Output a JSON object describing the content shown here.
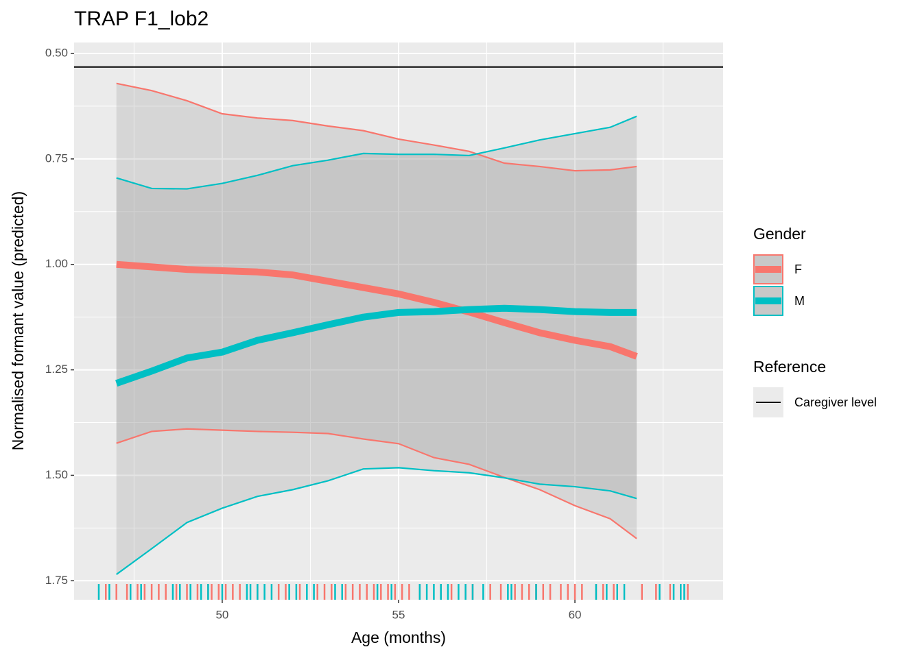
{
  "chart_data": {
    "type": "line",
    "title": "TRAP F1_lob2",
    "x_label": "Age (months)",
    "y_label": "Normalised formant value (predicted)",
    "legend_title": "Gender",
    "reference_legend_title": "Reference",
    "reference": {
      "name": "Caregiver level",
      "value": 0.532,
      "color": "#000000"
    },
    "x": [
      47,
      48,
      49,
      50,
      51,
      52,
      53,
      54,
      55,
      56,
      57,
      58,
      59,
      60,
      61,
      61.75
    ],
    "series": [
      {
        "name": "F",
        "color": "#F8766D",
        "values": [
          1.0,
          1.006,
          1.012,
          1.015,
          1.018,
          1.025,
          1.04,
          1.055,
          1.07,
          1.09,
          1.113,
          1.138,
          1.162,
          1.18,
          1.195,
          1.218
        ],
        "ci_low": [
          0.571,
          0.588,
          0.612,
          0.643,
          0.653,
          0.659,
          0.672,
          0.683,
          0.703,
          0.717,
          0.732,
          0.76,
          0.768,
          0.778,
          0.776,
          0.768
        ],
        "ci_high": [
          1.424,
          1.396,
          1.39,
          1.393,
          1.396,
          1.398,
          1.401,
          1.414,
          1.425,
          1.458,
          1.474,
          1.505,
          1.534,
          1.572,
          1.603,
          1.65
        ],
        "rug": [
          46.7,
          47.0,
          47.3,
          47.6,
          47.8,
          48.0,
          48.2,
          48.4,
          48.7,
          49.0,
          49.3,
          49.6,
          49.7,
          49.9,
          50.1,
          50.3,
          50.5,
          51.0,
          51.6,
          51.8,
          52.2,
          52.7,
          52.9,
          53.1,
          53.5,
          53.7,
          53.9,
          54.1,
          54.3,
          54.5,
          54.7,
          54.9,
          55.1,
          55.3,
          55.6,
          56.2,
          56.5,
          56.9,
          57.1,
          57.6,
          57.9,
          58.3,
          58.5,
          58.7,
          58.9,
          59.1,
          59.3,
          59.6,
          59.8,
          60.0,
          60.2,
          60.6,
          60.8,
          61.1,
          61.9,
          62.3,
          62.7,
          63.2
        ]
      },
      {
        "name": "M",
        "color": "#00BFC4",
        "values": [
          1.282,
          1.253,
          1.222,
          1.208,
          1.18,
          1.162,
          1.143,
          1.125,
          1.114,
          1.112,
          1.107,
          1.104,
          1.107,
          1.112,
          1.114,
          1.114
        ],
        "ci_low": [
          0.795,
          0.82,
          0.821,
          0.808,
          0.789,
          0.766,
          0.753,
          0.737,
          0.739,
          0.739,
          0.742,
          0.724,
          0.705,
          0.69,
          0.675,
          0.649
        ],
        "ci_high": [
          1.735,
          1.674,
          1.612,
          1.578,
          1.55,
          1.534,
          1.513,
          1.485,
          1.482,
          1.489,
          1.494,
          1.506,
          1.521,
          1.527,
          1.537,
          1.555
        ],
        "rug": [
          46.5,
          46.8,
          47.4,
          47.7,
          48.6,
          48.8,
          49.1,
          49.4,
          49.6,
          50.0,
          50.7,
          50.8,
          51.0,
          51.2,
          51.4,
          51.9,
          52.1,
          52.4,
          52.6,
          53.2,
          53.4,
          54.4,
          54.8,
          55.6,
          55.8,
          56.0,
          56.2,
          56.4,
          56.7,
          56.9,
          57.1,
          57.4,
          58.1,
          58.2,
          58.9,
          60.6,
          60.9,
          61.2,
          61.4,
          62.4,
          62.8,
          63.0,
          63.1
        ]
      }
    ],
    "xlim": [
      45.8,
      64.2
    ],
    "ylim": [
      0.474,
      1.795
    ],
    "y_reversed": true,
    "xticks": [
      50,
      55,
      60
    ],
    "minor_xticks": [
      47.5,
      52.5,
      57.5,
      62.5
    ],
    "yticks": [
      {
        "value": 0.5,
        "label": "0.50"
      },
      0.75,
      {
        "value": 1.0,
        "label": "1.00"
      },
      1.25,
      {
        "value": 1.5,
        "label": "1.50"
      },
      1.75
    ],
    "minor_yticks": [
      0.625,
      0.875,
      1.125,
      1.375,
      1.625
    ],
    "grid": true
  }
}
